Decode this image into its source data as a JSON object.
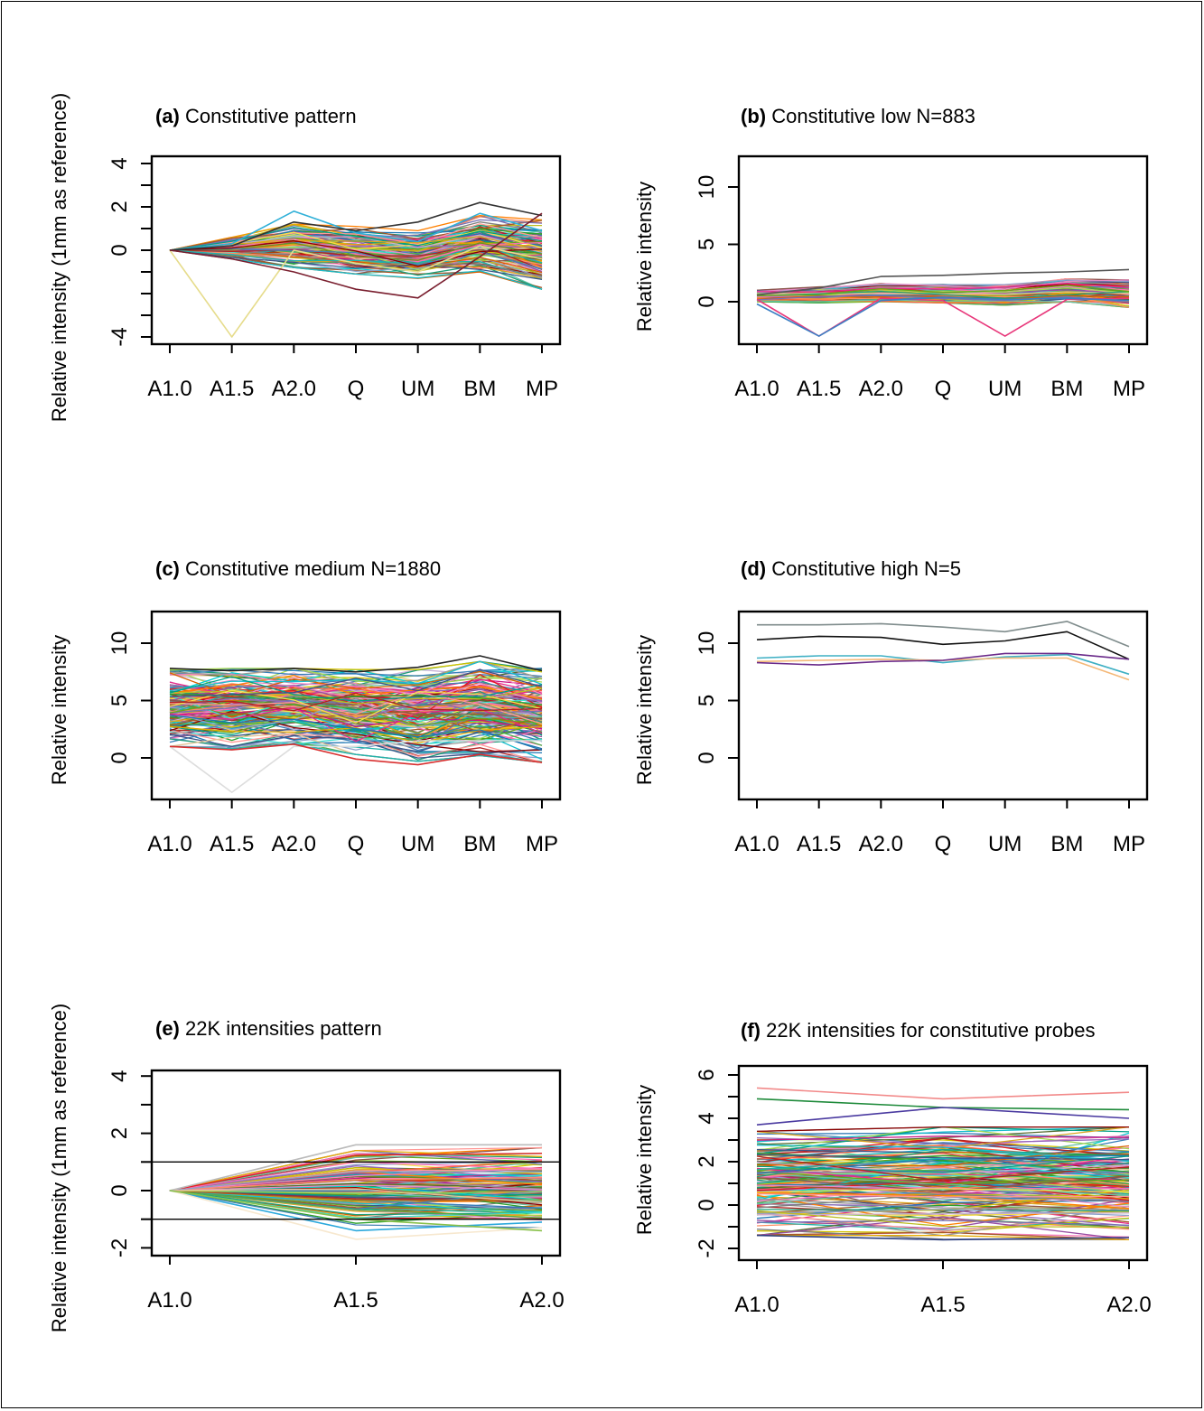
{
  "figure": {
    "panels": [
      {
        "id": "a",
        "tag": "(a)",
        "title": " Constitutive pattern",
        "ylabel": "Relative intensity (1mm as reference)"
      },
      {
        "id": "b",
        "tag": "(b)",
        "title": " Constitutive low  N=883",
        "ylabel": "Relative intensity"
      },
      {
        "id": "c",
        "tag": "(c)",
        "title": " Constitutive medium  N=1880",
        "ylabel": "Relative intensity"
      },
      {
        "id": "d",
        "tag": "(d)",
        "title": " Constitutive high   N=5",
        "ylabel": "Relative intensity"
      },
      {
        "id": "e",
        "tag": "(e)",
        "title": " 22K intensities pattern",
        "ylabel": "Relative intensity (1mm as reference)"
      },
      {
        "id": "f",
        "tag": "(f)",
        "title": " 22K intensities for constitutive probes",
        "ylabel": "Relative intensity"
      }
    ]
  },
  "chart_data": [
    {
      "panel": "a",
      "type": "line",
      "title": "(a) Constitutive pattern",
      "xlabel": "",
      "ylabel": "Relative intensity (1mm as reference)",
      "categories": [
        "A1.0",
        "A1.5",
        "A2.0",
        "Q",
        "UM",
        "BM",
        "MP"
      ],
      "yticks": [
        "-4",
        "0",
        "2",
        "4"
      ],
      "ytick_values": [
        -4,
        0,
        2,
        4
      ],
      "ylim": [
        -4,
        4
      ],
      "highlight_series": [
        {
          "values": [
            0,
            -4,
            0,
            -0.6,
            -1.0,
            0.2,
            -0.4
          ],
          "color": "#e6dc8c"
        },
        {
          "values": [
            0,
            0.3,
            1.8,
            0.8,
            0.4,
            1.7,
            0.9
          ],
          "color": "#2fb0d8"
        },
        {
          "values": [
            0,
            0.2,
            1.3,
            0.9,
            1.3,
            2.2,
            1.6
          ],
          "color": "#333333"
        },
        {
          "values": [
            0,
            -0.4,
            -1.0,
            -1.8,
            -2.2,
            -0.3,
            1.7
          ],
          "color": "#7a1f2f"
        }
      ],
      "bundle": {
        "count": 130,
        "center": [
          0,
          0.1,
          0.2,
          0,
          -0.2,
          0.3,
          -0.2
        ],
        "spread": [
          0,
          0.5,
          1.0,
          1.1,
          1.1,
          1.3,
          1.6
        ]
      }
    },
    {
      "panel": "b",
      "type": "line",
      "title": "(b) Constitutive low  N=883",
      "xlabel": "",
      "ylabel": "Relative intensity",
      "categories": [
        "A1.0",
        "A1.5",
        "A2.0",
        "Q",
        "UM",
        "BM",
        "MP"
      ],
      "yticks": [
        "0",
        "5",
        "10"
      ],
      "ytick_values": [
        0,
        5,
        10
      ],
      "ylim": [
        -3.5,
        12.5
      ],
      "highlight_series": [
        {
          "values": [
            0.2,
            -3,
            0.3,
            0.1,
            -3,
            0.2,
            0.3
          ],
          "color": "#e8377a"
        },
        {
          "values": [
            -0.2,
            -3,
            0.1,
            0.4,
            0.2,
            0.3,
            0.1
          ],
          "color": "#3b7fc4"
        },
        {
          "values": [
            0.6,
            1.2,
            2.2,
            2.3,
            2.5,
            2.6,
            2.8
          ],
          "color": "#555555"
        }
      ],
      "bundle": {
        "count": 110,
        "center": [
          0.5,
          0.6,
          0.8,
          0.7,
          0.6,
          1.0,
          0.7
        ],
        "spread": [
          0.5,
          0.7,
          0.8,
          0.8,
          0.9,
          1.0,
          1.2
        ]
      }
    },
    {
      "panel": "c",
      "type": "line",
      "title": "(c) Constitutive medium  N=1880",
      "xlabel": "",
      "ylabel": "Relative intensity",
      "categories": [
        "A1.0",
        "A1.5",
        "A2.0",
        "Q",
        "UM",
        "BM",
        "MP"
      ],
      "yticks": [
        "0",
        "5",
        "10"
      ],
      "ytick_values": [
        0,
        5,
        10
      ],
      "ylim": [
        -3.5,
        12.5
      ],
      "highlight_series": [
        {
          "values": [
            1,
            -3,
            1,
            1,
            1.5,
            1.5,
            1.5
          ],
          "color": "#dddddd"
        },
        {
          "values": [
            7.8,
            7.6,
            7.8,
            7.5,
            7.9,
            8.9,
            7.6
          ],
          "color": "#222222"
        },
        {
          "values": [
            1.0,
            0.7,
            1.2,
            -0.1,
            -0.6,
            0.3,
            -0.4
          ],
          "color": "#d93030"
        }
      ],
      "bundle": {
        "count": 170,
        "center": [
          4.4,
          4.3,
          4.5,
          4.0,
          3.7,
          4.3,
          3.7
        ],
        "spread": [
          3.4,
          3.5,
          3.3,
          3.7,
          4.0,
          4.1,
          4.1
        ]
      }
    },
    {
      "panel": "d",
      "type": "line",
      "title": "(d) Constitutive high   N=5",
      "xlabel": "",
      "ylabel": "Relative intensity",
      "categories": [
        "A1.0",
        "A1.5",
        "A2.0",
        "Q",
        "UM",
        "BM",
        "MP"
      ],
      "yticks": [
        "0",
        "5",
        "10"
      ],
      "ytick_values": [
        0,
        5,
        10
      ],
      "ylim": [
        -3.5,
        12.5
      ],
      "series": [
        {
          "values": [
            11.6,
            11.6,
            11.7,
            11.4,
            11.0,
            11.9,
            9.7
          ],
          "color": "#7f8c8c"
        },
        {
          "values": [
            10.3,
            10.6,
            10.5,
            9.9,
            10.2,
            11.0,
            8.6
          ],
          "color": "#111111"
        },
        {
          "values": [
            8.7,
            8.9,
            8.9,
            8.3,
            8.8,
            9.0,
            7.3
          ],
          "color": "#3fb0c4"
        },
        {
          "values": [
            8.4,
            8.5,
            8.6,
            8.5,
            8.7,
            8.7,
            6.8
          ],
          "color": "#f4b878"
        },
        {
          "values": [
            8.3,
            8.1,
            8.4,
            8.5,
            9.1,
            9.1,
            8.6
          ],
          "color": "#6a2a8a"
        }
      ]
    },
    {
      "panel": "e",
      "type": "line",
      "title": "(e) 22K intensities pattern",
      "xlabel": "",
      "ylabel": "Relative intensity (1mm as reference)",
      "categories": [
        "A1.0",
        "A1.5",
        "A2.0"
      ],
      "yticks": [
        "-2",
        "0",
        "2",
        "4"
      ],
      "ytick_values": [
        -2,
        0,
        2,
        4
      ],
      "ylim": [
        -2.3,
        4.3
      ],
      "hlines": [
        1,
        -1
      ],
      "highlight_series": [
        {
          "values": [
            0,
            1.6,
            1.6
          ],
          "color": "#bbbbbb"
        },
        {
          "values": [
            0,
            -1.4,
            -1.1
          ],
          "color": "#2aa8dc"
        },
        {
          "values": [
            0,
            -1.7,
            -1.3
          ],
          "color": "#f7e8cf"
        },
        {
          "values": [
            0,
            -1.0,
            -1.4
          ],
          "color": "#88c04a"
        }
      ],
      "bundle": {
        "count": 150,
        "center": [
          0,
          0.1,
          0.1
        ],
        "spread": [
          0,
          1.3,
          1.4
        ]
      }
    },
    {
      "panel": "f",
      "type": "line",
      "title": "(f) 22K intensities for constitutive probes",
      "xlabel": "",
      "ylabel": "Relative intensity",
      "categories": [
        "A1.0",
        "A1.5",
        "A2.0"
      ],
      "yticks": [
        "-2",
        "0",
        "2",
        "4",
        "6"
      ],
      "ytick_values": [
        -2,
        0,
        2,
        4,
        6
      ],
      "ylim": [
        -2.2,
        6.4
      ],
      "highlight_series": [
        {
          "values": [
            5.4,
            4.9,
            5.2
          ],
          "color": "#f28a8a"
        },
        {
          "values": [
            4.9,
            4.5,
            4.4
          ],
          "color": "#1e8a3a"
        },
        {
          "values": [
            3.7,
            4.5,
            4.0
          ],
          "color": "#4a3aa0"
        },
        {
          "values": [
            -1.4,
            -1.6,
            -1.5
          ],
          "color": "#2c3e80"
        }
      ],
      "bundle": {
        "count": 170,
        "center": [
          1.0,
          1.0,
          1.0
        ],
        "spread": [
          2.4,
          2.6,
          2.6
        ]
      }
    }
  ]
}
